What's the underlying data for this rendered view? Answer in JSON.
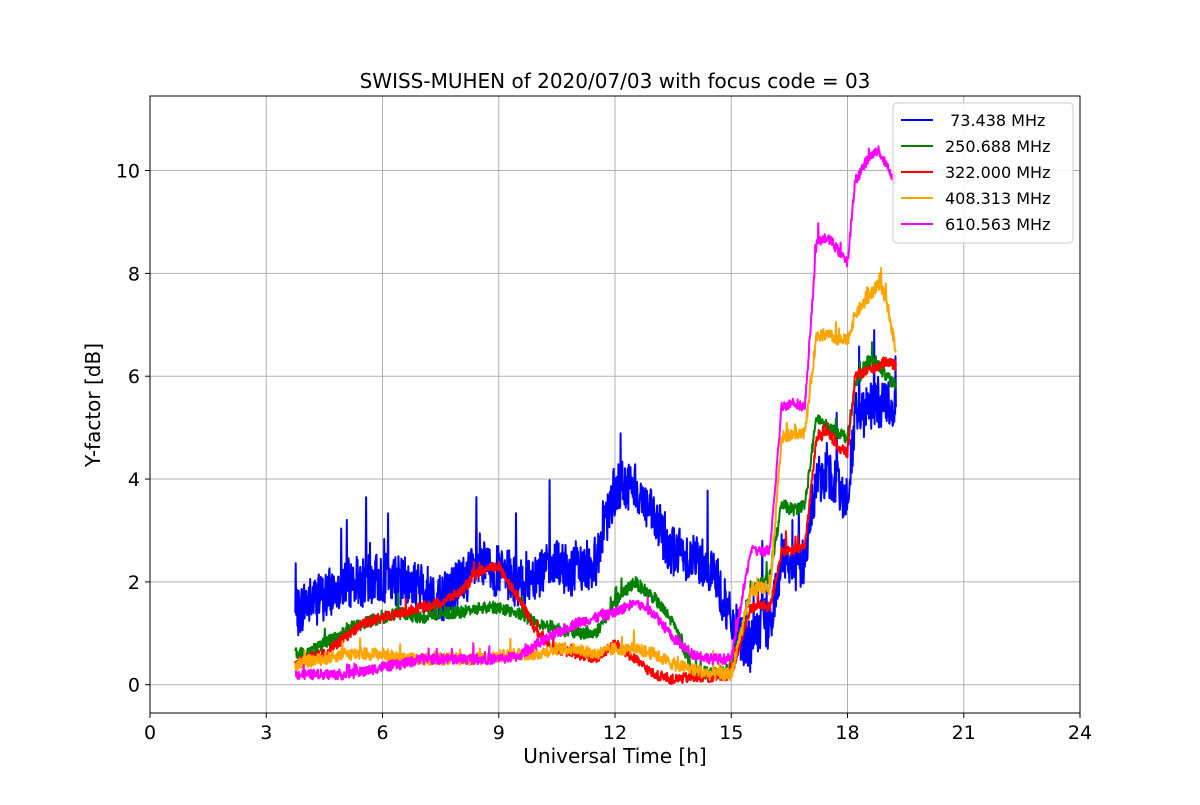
{
  "chart_data": {
    "type": "line",
    "title": "SWISS-MUHEN of 2020/07/03 with focus code = 03",
    "xlabel": "Universal Time [h]",
    "ylabel": "Y-factor [dB]",
    "xlim": [
      0,
      24
    ],
    "ylim": [
      -0.55,
      11.45
    ],
    "x_ticks": [
      0,
      3,
      6,
      9,
      12,
      15,
      18,
      21,
      24
    ],
    "x_tick_labels": [
      "0",
      "3",
      "6",
      "9",
      "12",
      "15",
      "18",
      "21",
      "24"
    ],
    "y_ticks": [
      0,
      2,
      4,
      6,
      8,
      10
    ],
    "y_tick_labels": [
      "0",
      "2",
      "4",
      "6",
      "8",
      "10"
    ],
    "grid": true,
    "legend_position": "top-right",
    "series": [
      {
        "name": " 73.438 MHz",
        "color": "#0000ff",
        "x": [
          3.75,
          4.0,
          4.5,
          5.0,
          5.5,
          6.0,
          6.5,
          7.0,
          7.5,
          8.0,
          8.5,
          9.0,
          9.5,
          10.0,
          10.5,
          11.0,
          11.5,
          12.0,
          12.5,
          13.0,
          13.5,
          14.0,
          14.5,
          15.0,
          15.5,
          15.8,
          16.0,
          16.3,
          16.6,
          16.9,
          17.2,
          17.5,
          17.8,
          18.0,
          18.2,
          18.5,
          18.8,
          19.0,
          19.25
        ],
        "y": [
          1.3,
          1.6,
          1.7,
          2.0,
          2.0,
          2.1,
          2.0,
          1.9,
          1.7,
          2.0,
          2.3,
          2.2,
          2.0,
          2.2,
          2.3,
          2.2,
          2.4,
          3.8,
          3.9,
          3.2,
          2.6,
          2.5,
          2.3,
          1.2,
          0.7,
          1.2,
          1.1,
          2.5,
          2.3,
          2.4,
          4.0,
          4.1,
          3.8,
          3.6,
          5.2,
          5.3,
          5.5,
          5.5,
          5.4
        ],
        "noise": 0.5
      },
      {
        "name": "250.688 MHz",
        "color": "#008000",
        "x": [
          3.75,
          4.0,
          4.5,
          5.0,
          5.5,
          6.0,
          6.5,
          7.0,
          7.5,
          8.0,
          8.5,
          9.0,
          9.5,
          10.0,
          10.5,
          11.0,
          11.5,
          12.0,
          12.5,
          13.0,
          13.5,
          14.0,
          14.5,
          15.0,
          15.5,
          15.8,
          16.0,
          16.3,
          16.6,
          16.9,
          17.2,
          17.5,
          17.8,
          18.0,
          18.2,
          18.5,
          18.8,
          19.0,
          19.25
        ],
        "y": [
          0.6,
          0.6,
          0.8,
          1.0,
          1.2,
          1.3,
          1.4,
          1.3,
          1.4,
          1.4,
          1.5,
          1.5,
          1.4,
          1.2,
          1.1,
          1.0,
          1.0,
          1.6,
          2.0,
          1.7,
          1.2,
          0.3,
          0.2,
          0.3,
          1.8,
          2.0,
          2.1,
          3.5,
          3.4,
          3.5,
          5.2,
          5.0,
          4.9,
          4.8,
          5.8,
          6.3,
          6.2,
          6.0,
          5.8
        ],
        "noise": 0.12
      },
      {
        "name": "322.000 MHz",
        "color": "#ff0000",
        "x": [
          3.75,
          4.0,
          4.5,
          5.0,
          5.5,
          6.0,
          6.5,
          7.0,
          7.5,
          8.0,
          8.5,
          9.0,
          9.5,
          10.0,
          10.5,
          11.0,
          11.5,
          12.0,
          12.5,
          13.0,
          13.5,
          14.0,
          14.5,
          15.0,
          15.5,
          15.8,
          16.0,
          16.3,
          16.6,
          16.9,
          17.2,
          17.5,
          17.8,
          18.0,
          18.2,
          18.5,
          18.8,
          19.0,
          19.25
        ],
        "y": [
          0.4,
          0.5,
          0.6,
          0.9,
          1.2,
          1.3,
          1.4,
          1.5,
          1.6,
          1.8,
          2.2,
          2.3,
          1.7,
          1.0,
          0.7,
          0.6,
          0.5,
          0.8,
          0.5,
          0.2,
          0.1,
          0.15,
          0.15,
          0.2,
          1.5,
          1.55,
          1.5,
          2.6,
          2.6,
          2.7,
          4.8,
          4.9,
          4.6,
          4.5,
          6.0,
          6.1,
          6.2,
          6.3,
          6.2
        ],
        "noise": 0.1
      },
      {
        "name": "408.313 MHz",
        "color": "#ffa500",
        "x": [
          3.75,
          4.0,
          4.5,
          5.0,
          5.5,
          6.0,
          6.5,
          7.0,
          7.5,
          8.0,
          8.5,
          9.0,
          9.5,
          10.0,
          10.5,
          11.0,
          11.5,
          12.0,
          12.5,
          13.0,
          13.5,
          14.0,
          14.5,
          15.0,
          15.5,
          15.8,
          16.0,
          16.3,
          16.6,
          16.9,
          17.2,
          17.5,
          17.8,
          18.0,
          18.2,
          18.5,
          18.8,
          19.0,
          19.25
        ],
        "y": [
          0.4,
          0.45,
          0.5,
          0.6,
          0.6,
          0.6,
          0.5,
          0.5,
          0.5,
          0.5,
          0.5,
          0.55,
          0.6,
          0.6,
          0.7,
          0.7,
          0.6,
          0.7,
          0.7,
          0.6,
          0.4,
          0.3,
          0.2,
          0.2,
          1.8,
          1.9,
          1.8,
          4.8,
          4.9,
          4.9,
          6.8,
          6.8,
          6.7,
          6.7,
          7.2,
          7.5,
          7.8,
          7.5,
          6.5
        ],
        "noise": 0.12
      },
      {
        "name": "610.563 MHz",
        "color": "#ff00ff",
        "x": [
          3.75,
          4.0,
          4.5,
          5.0,
          5.5,
          6.0,
          6.5,
          7.0,
          7.5,
          8.0,
          8.5,
          9.0,
          9.5,
          10.0,
          10.5,
          11.0,
          11.5,
          12.0,
          12.5,
          13.0,
          13.5,
          14.0,
          14.5,
          15.0,
          15.5,
          15.8,
          16.0,
          16.3,
          16.6,
          16.9,
          17.2,
          17.5,
          17.8,
          18.0,
          18.2,
          18.5,
          18.8,
          19.0,
          19.25
        ],
        "y": [
          0.2,
          0.2,
          0.2,
          0.2,
          0.25,
          0.35,
          0.4,
          0.5,
          0.5,
          0.5,
          0.5,
          0.5,
          0.55,
          0.8,
          1.0,
          1.2,
          1.3,
          1.4,
          1.6,
          1.4,
          0.9,
          0.6,
          0.5,
          0.5,
          2.6,
          2.6,
          2.6,
          5.4,
          5.5,
          5.4,
          8.6,
          8.7,
          8.4,
          8.2,
          9.8,
          10.2,
          10.4,
          10.1,
          9.8
        ],
        "noise": 0.1
      }
    ]
  }
}
